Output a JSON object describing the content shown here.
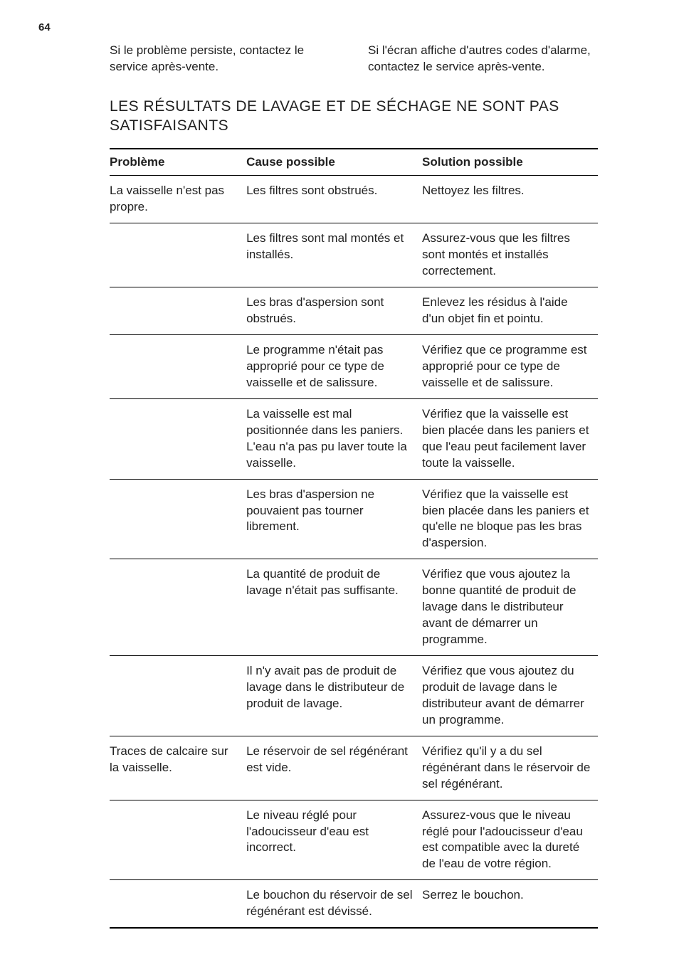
{
  "page_number": "64",
  "intro_left": "Si le problème persiste, contactez le service après-vente.",
  "intro_right": "Si l'écran affiche d'autres codes d'alarme, contactez le service après-vente.",
  "section_title": "LES RÉSULTATS DE LAVAGE ET DE SÉCHAGE NE SONT PAS SATISFAISANTS",
  "table": {
    "headers": {
      "problem": "Problème",
      "cause": "Cause possible",
      "solution": "Solution possible"
    },
    "rows": [
      {
        "problem": "La vaisselle n'est pas propre.",
        "cause": "Les filtres sont obstrués.",
        "solution": "Nettoyez les filtres."
      },
      {
        "problem": "",
        "cause": "Les filtres sont mal montés et installés.",
        "solution": "Assurez-vous que les filtres sont montés et installés correctement."
      },
      {
        "problem": "",
        "cause": "Les bras d'aspersion sont obstrués.",
        "solution": "Enlevez les résidus à l'aide d'un objet fin et pointu."
      },
      {
        "problem": "",
        "cause": "Le programme n'était pas approprié pour ce type de vaisselle et de salissure.",
        "solution": "Vérifiez que ce programme est approprié pour ce type de vaisselle et de salissure."
      },
      {
        "problem": "",
        "cause": "La vaisselle est mal positionnée dans les paniers. L'eau n'a pas pu laver toute la vaisselle.",
        "solution": "Vérifiez que la vaisselle est bien placée dans les paniers et que l'eau peut facilement laver toute la vaisselle."
      },
      {
        "problem": "",
        "cause": "Les bras d'aspersion ne pouvaient pas tourner librement.",
        "solution": "Vérifiez que la vaisselle est bien placée dans les paniers et qu'elle ne bloque pas les bras d'aspersion."
      },
      {
        "problem": "",
        "cause": "La quantité de produit de lavage n'était pas suffisante.",
        "solution": "Vérifiez que vous ajoutez la bonne quantité de produit de lavage dans le distributeur avant de démarrer un programme."
      },
      {
        "problem": "",
        "cause": "Il n'y avait pas de produit de lavage dans le distributeur de produit de lavage.",
        "solution": "Vérifiez que vous ajoutez du produit de lavage dans le distributeur avant de démarrer un programme."
      },
      {
        "problem": "Traces de calcaire sur la vaisselle.",
        "cause": "Le réservoir de sel régénérant est vide.",
        "solution": "Vérifiez qu'il y a du sel régénérant dans le réservoir de sel régénérant."
      },
      {
        "problem": "",
        "cause": "Le niveau réglé pour l'adoucisseur d'eau est incorrect.",
        "solution": "Assurez-vous que le niveau réglé pour l'adoucisseur d'eau est compatible avec la dureté de l'eau de votre région."
      },
      {
        "problem": "",
        "cause": "Le bouchon du réservoir de sel régénérant est dévissé.",
        "solution": "Serrez le bouchon."
      }
    ]
  }
}
